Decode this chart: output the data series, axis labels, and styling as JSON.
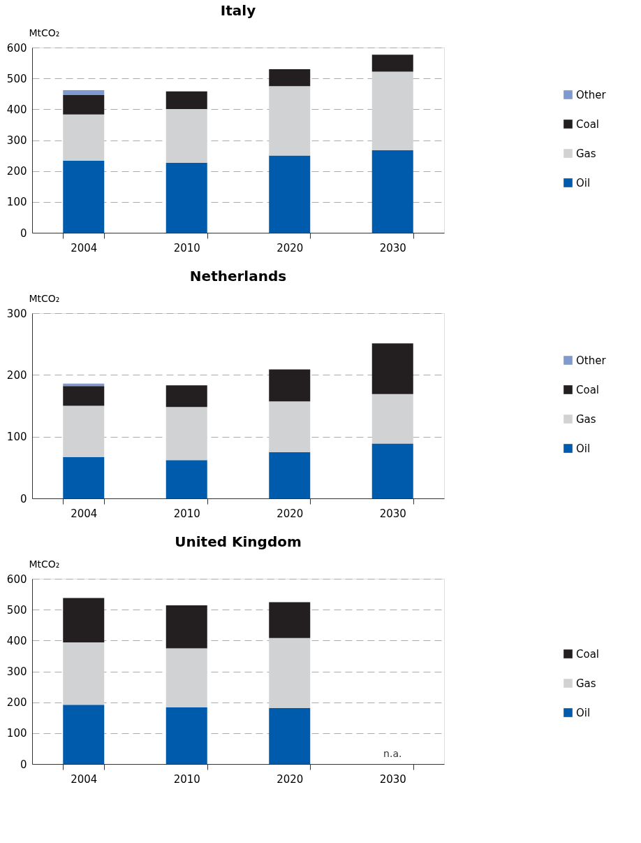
{
  "chart_data": [
    {
      "type": "bar",
      "title": "Italy",
      "ylabel": "MtCO₂",
      "stacked": true,
      "categories": [
        "2004",
        "2010",
        "2020",
        "2030"
      ],
      "series": [
        {
          "name": "Oil",
          "color": "#005bac",
          "values": [
            233,
            227,
            250,
            268
          ]
        },
        {
          "name": "Gas",
          "color": "#d1d2d4",
          "values": [
            150,
            174,
            225,
            254
          ]
        },
        {
          "name": "Coal",
          "color": "#231f20",
          "values": [
            63,
            57,
            55,
            55
          ]
        },
        {
          "name": "Other",
          "color": "#7f9acf",
          "values": [
            16,
            null,
            null,
            null
          ]
        }
      ],
      "ylim": [
        0,
        600
      ],
      "yticks": [
        0,
        100,
        200,
        300,
        400,
        500,
        600
      ],
      "grid": "y",
      "legend": "right"
    },
    {
      "type": "bar",
      "title": "Netherlands",
      "ylabel": "MtCO₂",
      "stacked": true,
      "categories": [
        "2004",
        "2010",
        "2020",
        "2030"
      ],
      "series": [
        {
          "name": "Oil",
          "color": "#005bac",
          "values": [
            67,
            62,
            75,
            89
          ]
        },
        {
          "name": "Gas",
          "color": "#d1d2d4",
          "values": [
            83,
            86,
            82,
            80
          ]
        },
        {
          "name": "Coal",
          "color": "#231f20",
          "values": [
            32,
            35,
            52,
            82
          ]
        },
        {
          "name": "Other",
          "color": "#7f9acf",
          "values": [
            4,
            null,
            null,
            null
          ]
        }
      ],
      "ylim": [
        0,
        300
      ],
      "yticks": [
        0,
        100,
        200,
        300
      ],
      "grid": "y",
      "legend": "right"
    },
    {
      "type": "bar",
      "title": "United Kingdom",
      "ylabel": "MtCO₂",
      "stacked": true,
      "categories": [
        "2004",
        "2010",
        "2020",
        "2030"
      ],
      "series": [
        {
          "name": "Oil",
          "color": "#005bac",
          "values": [
            192,
            184,
            181,
            null
          ]
        },
        {
          "name": "Gas",
          "color": "#d1d2d4",
          "values": [
            202,
            191,
            227,
            null
          ]
        },
        {
          "name": "Coal",
          "color": "#231f20",
          "values": [
            144,
            139,
            116,
            null
          ]
        }
      ],
      "annotations": [
        "n.a."
      ],
      "ylim": [
        0,
        600
      ],
      "yticks": [
        0,
        100,
        200,
        300,
        400,
        500,
        600
      ],
      "grid": "y",
      "legend": "right"
    }
  ]
}
